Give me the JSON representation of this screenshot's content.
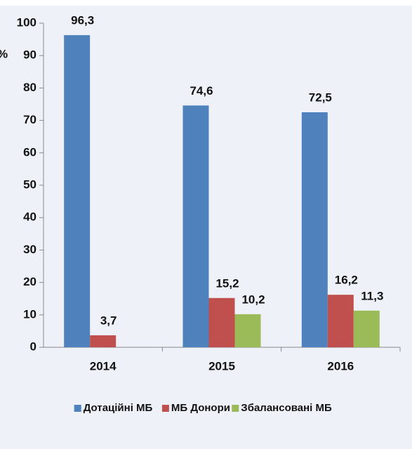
{
  "chart_data": {
    "type": "bar",
    "y_label": "%",
    "categories": [
      "2014",
      "2015",
      "2016"
    ],
    "series": [
      {
        "name": "Дотаційні МБ",
        "color": "#4f81bd",
        "values": [
          96.3,
          74.6,
          72.5
        ],
        "value_labels": [
          "96,3",
          "74,6",
          "72,5"
        ]
      },
      {
        "name": "МБ Донори",
        "color": "#c0504d",
        "values": [
          3.7,
          15.2,
          16.2
        ],
        "value_labels": [
          "3,7",
          "15,2",
          "16,2"
        ]
      },
      {
        "name": "Збалансовані МБ",
        "color": "#9bbb59",
        "values": [
          null,
          10.2,
          11.3
        ],
        "value_labels": [
          null,
          "10,2",
          "11,3"
        ]
      }
    ],
    "ylim": [
      0,
      100
    ],
    "yticks": [
      0,
      10,
      20,
      30,
      40,
      50,
      60,
      70,
      80,
      90,
      100
    ],
    "legend": "bottom"
  }
}
